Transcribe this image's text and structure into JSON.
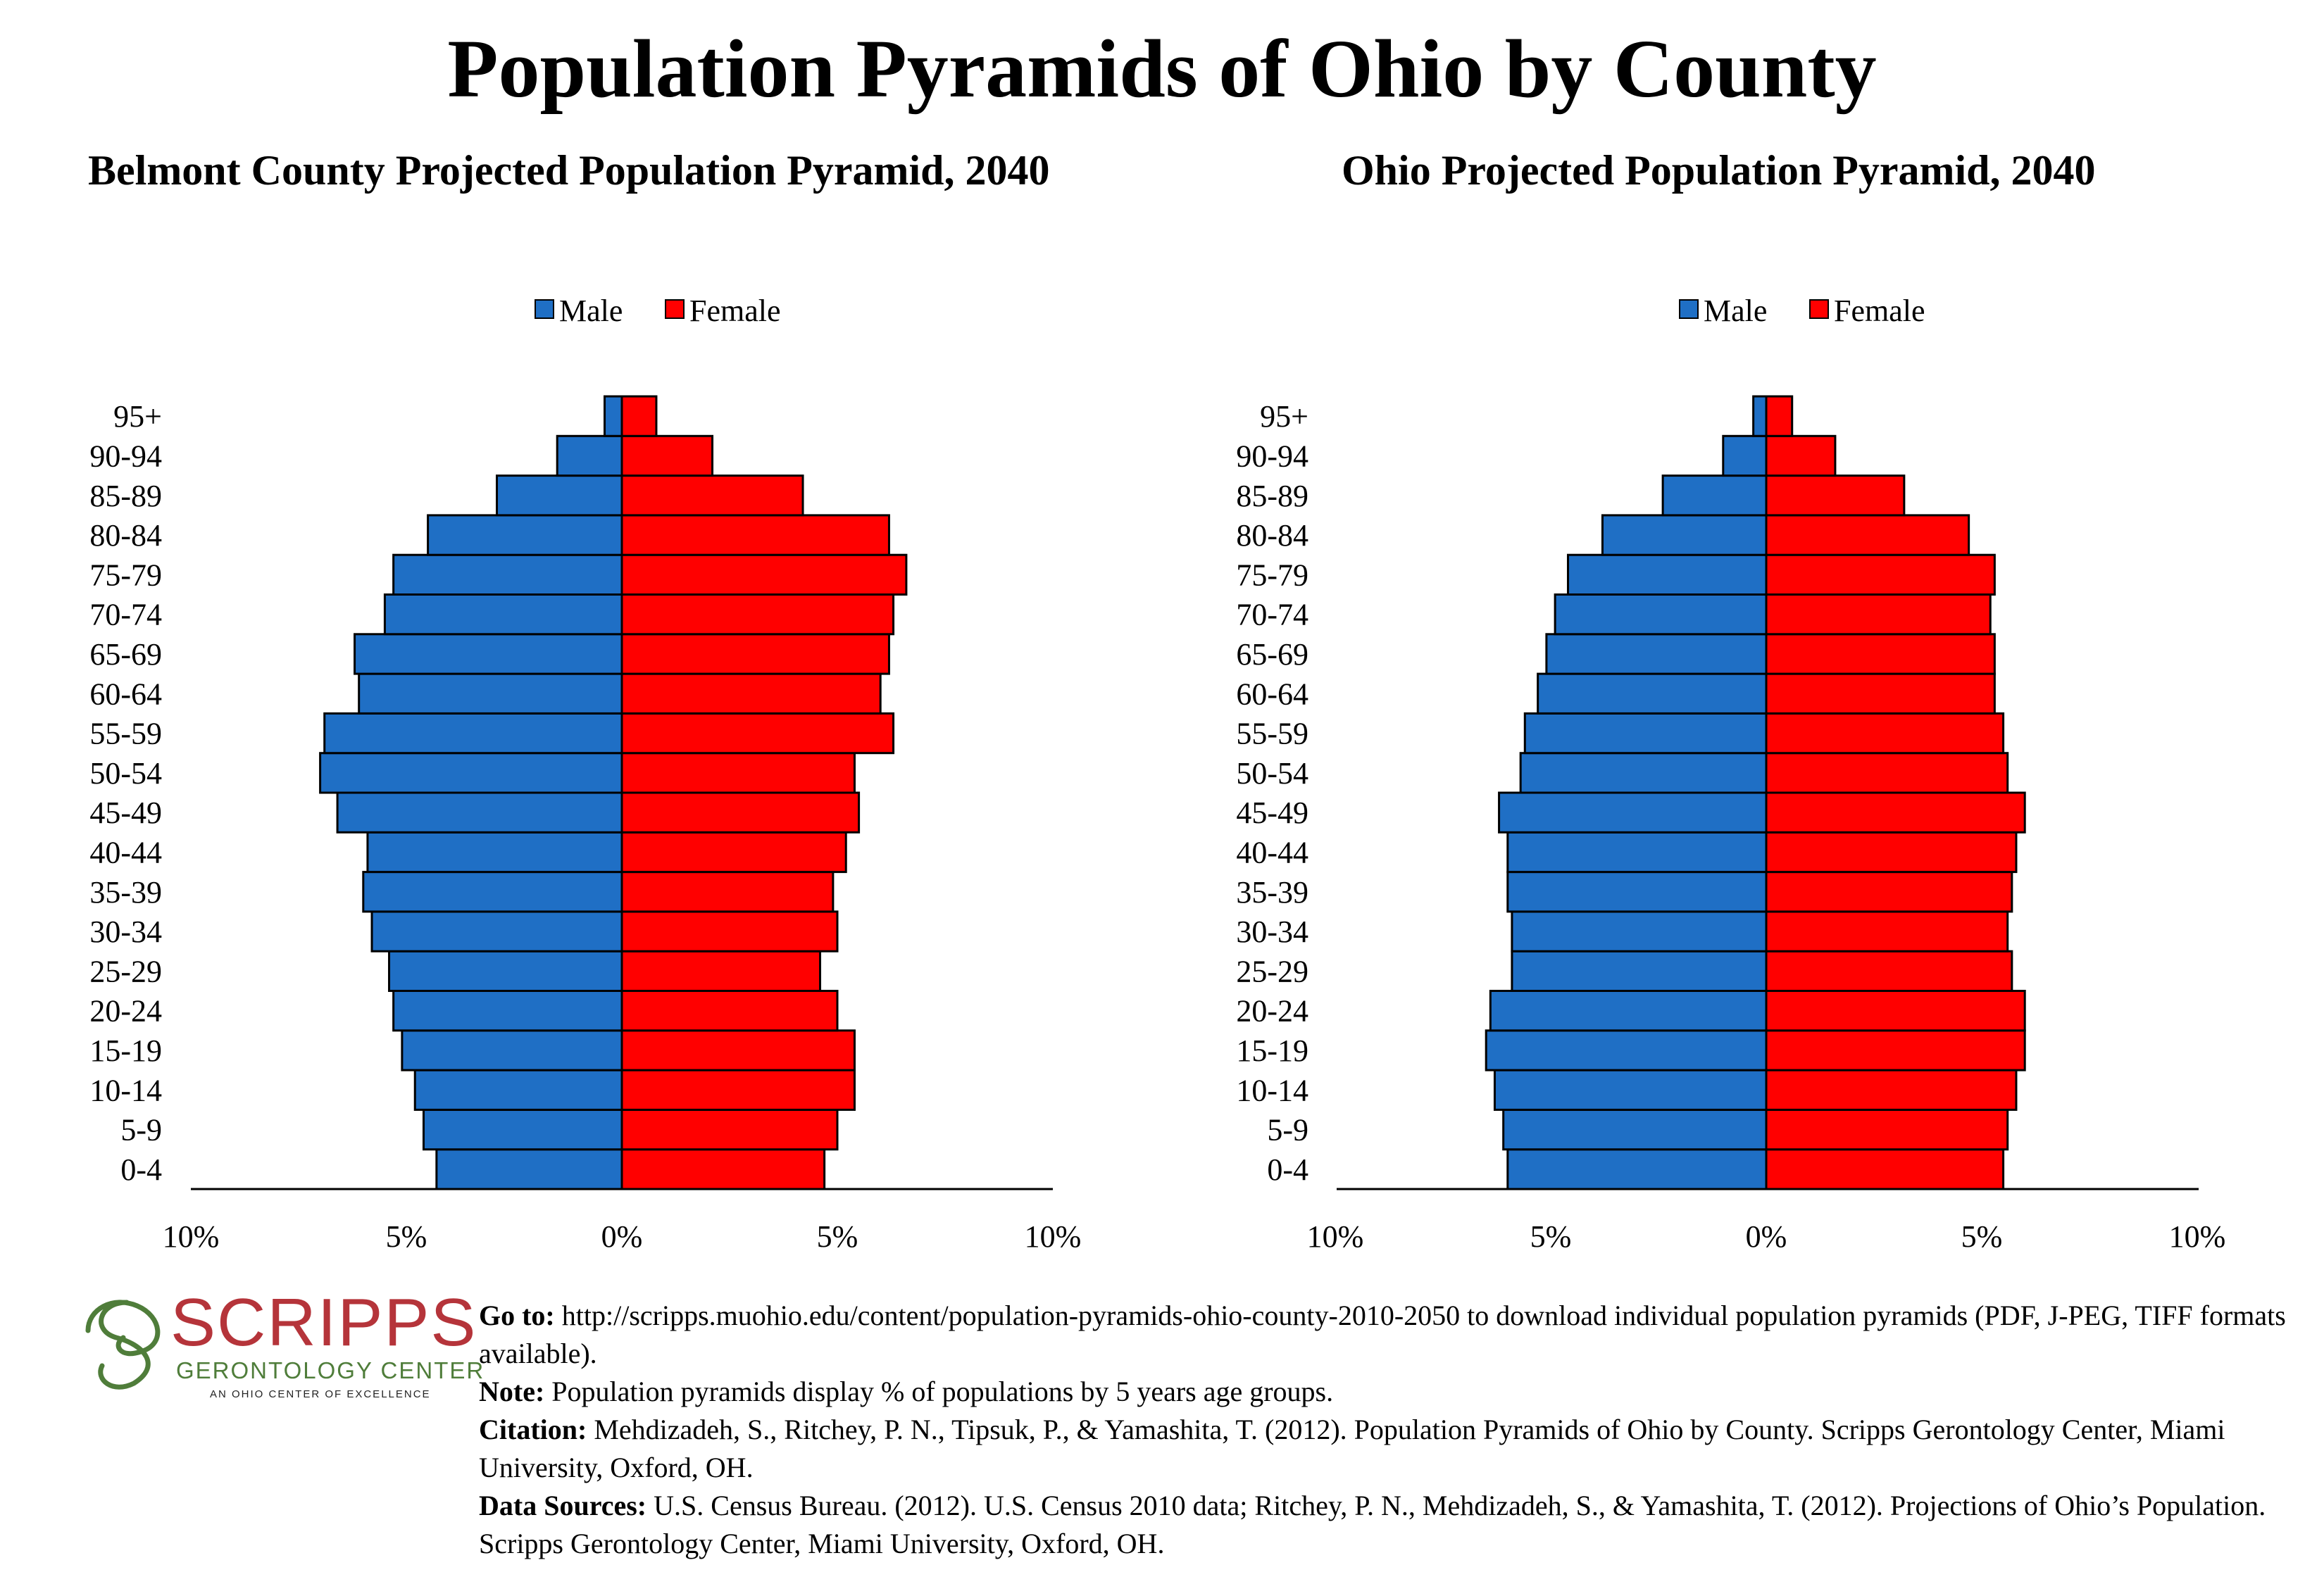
{
  "title": "Population Pyramids of Ohio by County",
  "chart_data": [
    {
      "type": "bar",
      "orientation": "horizontal-pyramid",
      "title": "Belmont County Projected Population Pyramid, 2040",
      "categories": [
        "0-4",
        "5-9",
        "10-14",
        "15-19",
        "20-24",
        "25-29",
        "30-34",
        "35-39",
        "40-44",
        "45-49",
        "50-54",
        "55-59",
        "60-64",
        "65-69",
        "70-74",
        "75-79",
        "80-84",
        "85-89",
        "90-94",
        "95+"
      ],
      "series": [
        {
          "name": "Male",
          "color": "#1f6fc5",
          "values": [
            4.3,
            4.6,
            4.8,
            5.1,
            5.3,
            5.4,
            5.8,
            6.0,
            5.9,
            6.6,
            7.0,
            6.9,
            6.1,
            6.2,
            5.5,
            5.3,
            4.5,
            2.9,
            1.5,
            0.4
          ]
        },
        {
          "name": "Female",
          "color": "#ff0000",
          "values": [
            4.7,
            5.0,
            5.4,
            5.4,
            5.0,
            4.6,
            5.0,
            4.9,
            5.2,
            5.5,
            5.4,
            6.3,
            6.0,
            6.2,
            6.3,
            6.6,
            6.2,
            4.2,
            2.1,
            0.8
          ]
        }
      ],
      "xlim": [
        -10,
        10
      ],
      "tick_labels": [
        "10%",
        "5%",
        "0%",
        "5%",
        "10%"
      ],
      "legend": "top-center"
    },
    {
      "type": "bar",
      "orientation": "horizontal-pyramid",
      "title": "Ohio Projected Population Pyramid, 2040",
      "categories": [
        "0-4",
        "5-9",
        "10-14",
        "15-19",
        "20-24",
        "25-29",
        "30-34",
        "35-39",
        "40-44",
        "45-49",
        "50-54",
        "55-59",
        "60-64",
        "65-69",
        "70-74",
        "75-79",
        "80-84",
        "85-89",
        "90-94",
        "95+"
      ],
      "series": [
        {
          "name": "Male",
          "color": "#1f6fc5",
          "values": [
            6.0,
            6.1,
            6.3,
            6.5,
            6.4,
            5.9,
            5.9,
            6.0,
            6.0,
            6.2,
            5.7,
            5.6,
            5.3,
            5.1,
            4.9,
            4.6,
            3.8,
            2.4,
            1.0,
            0.3
          ]
        },
        {
          "name": "Female",
          "color": "#ff0000",
          "values": [
            5.5,
            5.6,
            5.8,
            6.0,
            6.0,
            5.7,
            5.6,
            5.7,
            5.8,
            6.0,
            5.6,
            5.5,
            5.3,
            5.3,
            5.2,
            5.3,
            4.7,
            3.2,
            1.6,
            0.6
          ]
        }
      ],
      "xlim": [
        -10,
        10
      ],
      "tick_labels": [
        "10%",
        "5%",
        "0%",
        "5%",
        "10%"
      ],
      "legend": "top-center"
    }
  ],
  "logo": {
    "name": "SCRIPPS",
    "line2": "GERONTOLOGY CENTER",
    "line3": "AN OHIO CENTER OF EXCELLENCE"
  },
  "notes": {
    "goto_label": "Go to:",
    "goto_text": "http://scripps.muohio.edu/content/population-pyramids-ohio-county-2010-2050 to download individual population pyramids (PDF, J-PEG, TIFF formats available).",
    "note_label": "Note:",
    "note_text": "Population pyramids display % of populations by 5 years age groups.",
    "citation_label": "Citation:",
    "citation_text": "Mehdizadeh, S., Ritchey, P. N., Tipsuk, P., & Yamashita, T. (2012). Population Pyramids of Ohio by County. Scripps Gerontology Center, Miami University, Oxford, OH.",
    "sources_label": "Data Sources:",
    "sources_text": "U.S. Census Bureau. (2012). U.S. Census 2010 data; Ritchey, P. N., Mehdizadeh, S., & Yamashita, T. (2012). Projections of Ohio’s Population. Scripps Gerontology Center, Miami University, Oxford, OH."
  }
}
